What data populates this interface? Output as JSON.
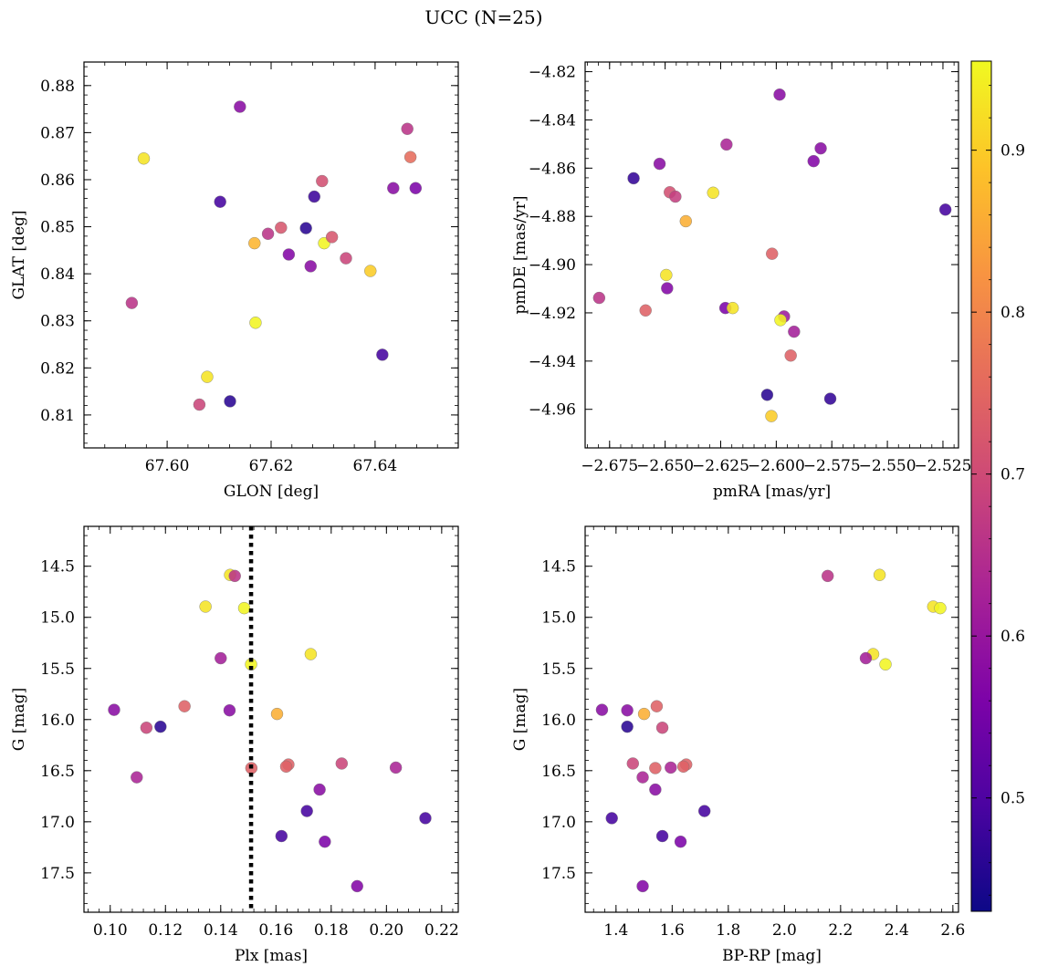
{
  "figure": {
    "title": "UCC (N=25)"
  },
  "colorbar": {
    "range": [
      0.43,
      0.955
    ],
    "ticks": [
      0.5,
      0.6,
      0.7,
      0.8,
      0.9
    ],
    "tick_labels": [
      "0.5",
      "0.6",
      "0.7",
      "0.8",
      "0.9"
    ],
    "colormap": "plasma"
  },
  "chart_data": [
    {
      "type": "scatter",
      "panel": "top-left",
      "xlabel": "GLON [deg]",
      "ylabel": "GLAT [deg]",
      "xlim": [
        67.584,
        67.656
      ],
      "ylim": [
        0.803,
        0.885
      ],
      "xticks": [
        67.6,
        67.62,
        67.64
      ],
      "xtick_labels": [
        "67.60",
        "67.62",
        "67.64"
      ],
      "yticks": [
        0.81,
        0.82,
        0.83,
        0.84,
        0.85,
        0.86,
        0.87,
        0.88
      ],
      "ytick_labels": [
        "0.81",
        "0.82",
        "0.83",
        "0.84",
        "0.85",
        "0.86",
        "0.87",
        "0.88"
      ],
      "points": [
        {
          "x": 67.614,
          "y": 0.8755,
          "c": 0.58
        },
        {
          "x": 67.5955,
          "y": 0.8645,
          "c": 0.93
        },
        {
          "x": 67.6462,
          "y": 0.8708,
          "c": 0.66
        },
        {
          "x": 67.6468,
          "y": 0.8648,
          "c": 0.76
        },
        {
          "x": 67.6298,
          "y": 0.8597,
          "c": 0.71
        },
        {
          "x": 67.6435,
          "y": 0.8582,
          "c": 0.58
        },
        {
          "x": 67.6478,
          "y": 0.8582,
          "c": 0.56
        },
        {
          "x": 67.6102,
          "y": 0.8553,
          "c": 0.49
        },
        {
          "x": 67.6283,
          "y": 0.8564,
          "c": 0.48
        },
        {
          "x": 67.6267,
          "y": 0.8497,
          "c": 0.46
        },
        {
          "x": 67.6219,
          "y": 0.8498,
          "c": 0.72
        },
        {
          "x": 67.6194,
          "y": 0.8485,
          "c": 0.66
        },
        {
          "x": 67.6168,
          "y": 0.8465,
          "c": 0.87
        },
        {
          "x": 67.6302,
          "y": 0.8465,
          "c": 0.95
        },
        {
          "x": 67.6317,
          "y": 0.8478,
          "c": 0.72
        },
        {
          "x": 67.6234,
          "y": 0.8441,
          "c": 0.57
        },
        {
          "x": 67.6344,
          "y": 0.8433,
          "c": 0.69
        },
        {
          "x": 67.6276,
          "y": 0.8416,
          "c": 0.58
        },
        {
          "x": 67.6391,
          "y": 0.8406,
          "c": 0.9
        },
        {
          "x": 67.5932,
          "y": 0.8338,
          "c": 0.66
        },
        {
          "x": 67.617,
          "y": 0.8296,
          "c": 0.95
        },
        {
          "x": 67.6414,
          "y": 0.8228,
          "c": 0.49
        },
        {
          "x": 67.6077,
          "y": 0.8181,
          "c": 0.93
        },
        {
          "x": 67.6062,
          "y": 0.8122,
          "c": 0.69
        },
        {
          "x": 67.6121,
          "y": 0.8129,
          "c": 0.46
        }
      ]
    },
    {
      "type": "scatter",
      "panel": "top-right",
      "xlabel": "pmRA [mas/yr]",
      "ylabel": "pmDE [mas/yr]",
      "xlim": [
        -2.686,
        -2.518
      ],
      "ylim": [
        -4.976,
        -4.816
      ],
      "xticks": [
        -2.675,
        -2.65,
        -2.625,
        -2.6,
        -2.575,
        -2.55,
        -2.525
      ],
      "xtick_labels": [
        "−2.675",
        "−2.650",
        "−2.625",
        "−2.600",
        "−2.575",
        "−2.550",
        "−2.525"
      ],
      "yticks": [
        -4.82,
        -4.84,
        -4.86,
        -4.88,
        -4.9,
        -4.92,
        -4.94,
        -4.96
      ],
      "ytick_labels": [
        "−4.82",
        "−4.84",
        "−4.86",
        "−4.88",
        "−4.90",
        "−4.92",
        "−4.94",
        "−4.96"
      ],
      "points": [
        {
          "x": -2.5985,
          "y": -4.8295,
          "c": 0.58
        },
        {
          "x": -2.6224,
          "y": -4.8502,
          "c": 0.63
        },
        {
          "x": -2.58,
          "y": -4.8518,
          "c": 0.58
        },
        {
          "x": -2.5832,
          "y": -4.8571,
          "c": 0.57
        },
        {
          "x": -2.6525,
          "y": -4.8582,
          "c": 0.58
        },
        {
          "x": -2.6642,
          "y": -4.8642,
          "c": 0.47
        },
        {
          "x": -2.6479,
          "y": -4.87,
          "c": 0.71
        },
        {
          "x": -2.6454,
          "y": -4.8718,
          "c": 0.68
        },
        {
          "x": -2.6284,
          "y": -4.8702,
          "c": 0.93
        },
        {
          "x": -2.6407,
          "y": -4.882,
          "c": 0.86
        },
        {
          "x": -2.5239,
          "y": -4.8772,
          "c": 0.49
        },
        {
          "x": -2.6019,
          "y": -4.8955,
          "c": 0.74
        },
        {
          "x": -2.6495,
          "y": -4.9043,
          "c": 0.93
        },
        {
          "x": -2.6491,
          "y": -4.9098,
          "c": 0.57
        },
        {
          "x": -2.6797,
          "y": -4.9138,
          "c": 0.66
        },
        {
          "x": -2.6588,
          "y": -4.919,
          "c": 0.74
        },
        {
          "x": -2.6229,
          "y": -4.918,
          "c": 0.56
        },
        {
          "x": -2.6196,
          "y": -4.918,
          "c": 0.93
        },
        {
          "x": -2.5965,
          "y": -4.9215,
          "c": 0.61
        },
        {
          "x": -2.5981,
          "y": -4.923,
          "c": 0.95
        },
        {
          "x": -2.592,
          "y": -4.9278,
          "c": 0.62
        },
        {
          "x": -2.5935,
          "y": -4.9377,
          "c": 0.74
        },
        {
          "x": -2.6041,
          "y": -4.954,
          "c": 0.46
        },
        {
          "x": -2.5757,
          "y": -4.9556,
          "c": 0.47
        },
        {
          "x": -2.6022,
          "y": -4.9628,
          "c": 0.9
        }
      ]
    },
    {
      "type": "scatter",
      "panel": "bottom-left",
      "xlabel": "Plx [mas]",
      "ylabel": "G [mag]",
      "xlim": [
        0.0905,
        0.226
      ],
      "ylim": [
        17.885,
        14.11
      ],
      "xticks": [
        0.1,
        0.12,
        0.14,
        0.16,
        0.18,
        0.2,
        0.22
      ],
      "xtick_labels": [
        "0.10",
        "0.12",
        "0.14",
        "0.16",
        "0.18",
        "0.20",
        "0.22"
      ],
      "yticks": [
        14.5,
        15.0,
        15.5,
        16.0,
        16.5,
        17.0,
        17.5
      ],
      "ytick_labels": [
        "14.5",
        "15.0",
        "15.5",
        "16.0",
        "16.5",
        "17.0",
        "17.5"
      ],
      "vline": {
        "x": 0.151
      },
      "points": [
        {
          "x": 0.1434,
          "y": 14.585,
          "c": 0.93
        },
        {
          "x": 0.1451,
          "y": 14.595,
          "c": 0.66
        },
        {
          "x": 0.1345,
          "y": 14.895,
          "c": 0.93
        },
        {
          "x": 0.1485,
          "y": 14.91,
          "c": 0.95
        },
        {
          "x": 0.1726,
          "y": 15.36,
          "c": 0.93
        },
        {
          "x": 0.14,
          "y": 15.4,
          "c": 0.62
        },
        {
          "x": 0.151,
          "y": 15.46,
          "c": 0.95
        },
        {
          "x": 0.1269,
          "y": 15.87,
          "c": 0.74
        },
        {
          "x": 0.1014,
          "y": 15.905,
          "c": 0.58
        },
        {
          "x": 0.1432,
          "y": 15.91,
          "c": 0.58
        },
        {
          "x": 0.1604,
          "y": 15.945,
          "c": 0.86
        },
        {
          "x": 0.1131,
          "y": 16.08,
          "c": 0.69
        },
        {
          "x": 0.1182,
          "y": 16.07,
          "c": 0.46
        },
        {
          "x": 0.1511,
          "y": 16.475,
          "c": 0.74
        },
        {
          "x": 0.1645,
          "y": 16.44,
          "c": 0.74
        },
        {
          "x": 0.1637,
          "y": 16.46,
          "c": 0.74
        },
        {
          "x": 0.1838,
          "y": 16.43,
          "c": 0.69
        },
        {
          "x": 0.2034,
          "y": 16.47,
          "c": 0.63
        },
        {
          "x": 0.1096,
          "y": 16.565,
          "c": 0.63
        },
        {
          "x": 0.1758,
          "y": 16.685,
          "c": 0.58
        },
        {
          "x": 0.1712,
          "y": 16.895,
          "c": 0.49
        },
        {
          "x": 0.2141,
          "y": 16.965,
          "c": 0.49
        },
        {
          "x": 0.162,
          "y": 17.14,
          "c": 0.49
        },
        {
          "x": 0.1777,
          "y": 17.195,
          "c": 0.56
        },
        {
          "x": 0.1894,
          "y": 17.63,
          "c": 0.57
        }
      ]
    },
    {
      "type": "scatter",
      "panel": "bottom-right",
      "xlabel": "BP-RP [mag]",
      "ylabel": "G [mag]",
      "xlim": [
        1.29,
        2.62
      ],
      "ylim": [
        17.885,
        14.11
      ],
      "xticks": [
        1.4,
        1.6,
        1.8,
        2.0,
        2.2,
        2.4,
        2.6
      ],
      "xtick_labels": [
        "1.4",
        "1.6",
        "1.8",
        "2.0",
        "2.2",
        "2.4",
        "2.6"
      ],
      "yticks": [
        14.5,
        15.0,
        15.5,
        16.0,
        16.5,
        17.0,
        17.5
      ],
      "ytick_labels": [
        "14.5",
        "15.0",
        "15.5",
        "16.0",
        "16.5",
        "17.0",
        "17.5"
      ],
      "points": [
        {
          "x": 2.154,
          "y": 14.595,
          "c": 0.66
        },
        {
          "x": 2.339,
          "y": 14.585,
          "c": 0.93
        },
        {
          "x": 2.53,
          "y": 14.895,
          "c": 0.93
        },
        {
          "x": 2.555,
          "y": 14.91,
          "c": 0.95
        },
        {
          "x": 2.316,
          "y": 15.36,
          "c": 0.93
        },
        {
          "x": 2.29,
          "y": 15.4,
          "c": 0.62
        },
        {
          "x": 2.36,
          "y": 15.46,
          "c": 0.95
        },
        {
          "x": 1.545,
          "y": 15.87,
          "c": 0.74
        },
        {
          "x": 1.35,
          "y": 15.905,
          "c": 0.58
        },
        {
          "x": 1.44,
          "y": 15.91,
          "c": 0.58
        },
        {
          "x": 1.5,
          "y": 15.945,
          "c": 0.86
        },
        {
          "x": 1.565,
          "y": 16.08,
          "c": 0.69
        },
        {
          "x": 1.44,
          "y": 16.07,
          "c": 0.46
        },
        {
          "x": 1.54,
          "y": 16.475,
          "c": 0.74
        },
        {
          "x": 1.65,
          "y": 16.44,
          "c": 0.74
        },
        {
          "x": 1.64,
          "y": 16.46,
          "c": 0.74
        },
        {
          "x": 1.46,
          "y": 16.43,
          "c": 0.69
        },
        {
          "x": 1.595,
          "y": 16.47,
          "c": 0.63
        },
        {
          "x": 1.495,
          "y": 16.565,
          "c": 0.63
        },
        {
          "x": 1.54,
          "y": 16.685,
          "c": 0.58
        },
        {
          "x": 1.715,
          "y": 16.895,
          "c": 0.49
        },
        {
          "x": 1.385,
          "y": 16.965,
          "c": 0.49
        },
        {
          "x": 1.565,
          "y": 17.14,
          "c": 0.49
        },
        {
          "x": 1.63,
          "y": 17.195,
          "c": 0.56
        },
        {
          "x": 1.495,
          "y": 17.63,
          "c": 0.57
        }
      ]
    }
  ]
}
